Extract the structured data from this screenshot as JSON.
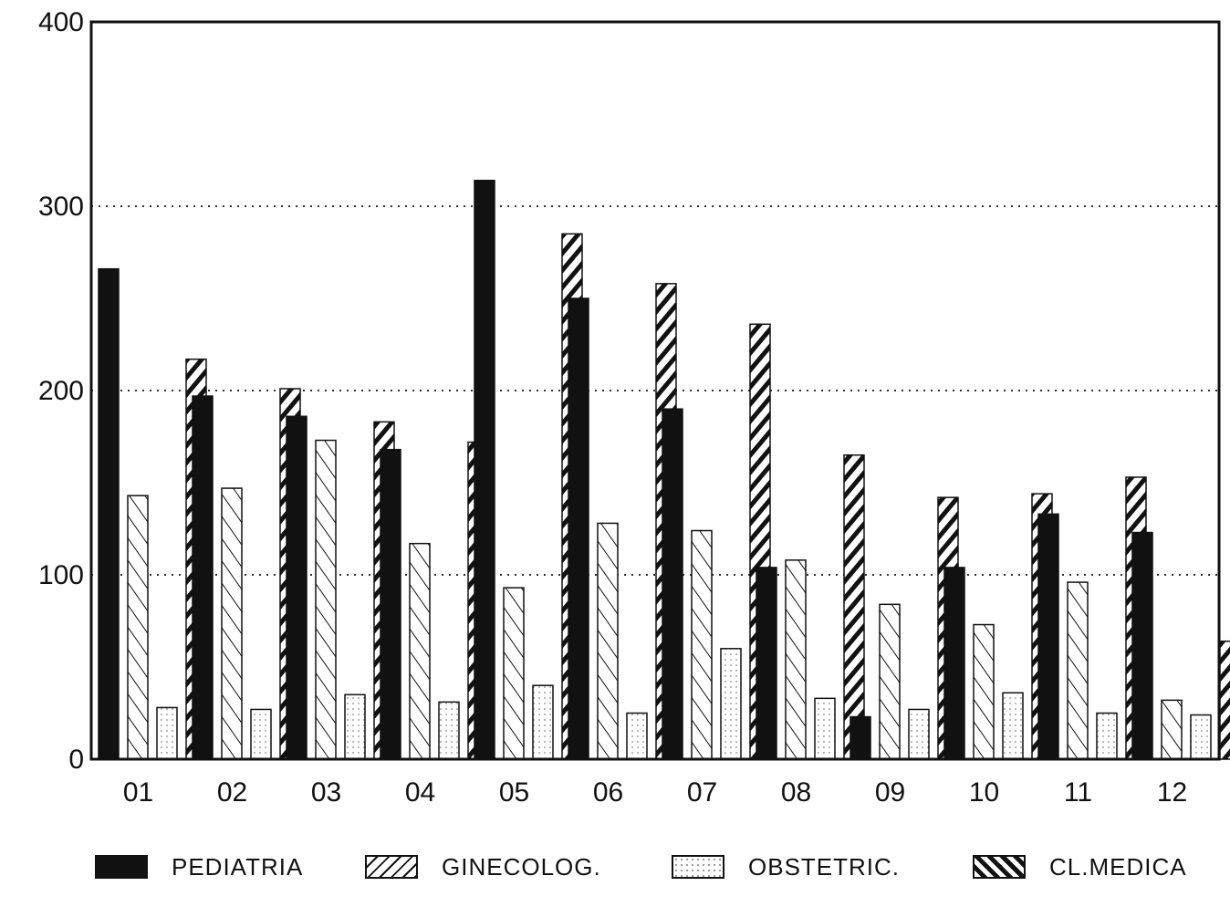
{
  "chart_data": {
    "type": "bar",
    "categories": [
      "01",
      "02",
      "03",
      "04",
      "05",
      "06",
      "07",
      "08",
      "09",
      "10",
      "11",
      "12"
    ],
    "series": [
      {
        "name": "PEDIATRIA",
        "values": [
          266,
          197,
          186,
          168,
          314,
          250,
          190,
          104,
          23,
          104,
          133,
          123
        ],
        "pattern": "solid"
      },
      {
        "name": "GINECOLOG.",
        "values": [
          143,
          147,
          173,
          117,
          93,
          128,
          124,
          108,
          84,
          73,
          96,
          32
        ],
        "pattern": "hatch"
      },
      {
        "name": "OBSTETRIC.",
        "values": [
          28,
          27,
          35,
          31,
          40,
          25,
          60,
          33,
          27,
          36,
          25,
          24
        ],
        "pattern": "dots"
      },
      {
        "name": "CL.MEDICA",
        "values": [
          217,
          201,
          183,
          172,
          285,
          258,
          236,
          165,
          142,
          144,
          153,
          64
        ],
        "pattern": "heavy-hatch"
      }
    ],
    "yticks": [
      0,
      100,
      200,
      300,
      400
    ],
    "ylim": [
      0,
      400
    ],
    "grid": "dotted-horizontal",
    "legend": "bottom"
  }
}
